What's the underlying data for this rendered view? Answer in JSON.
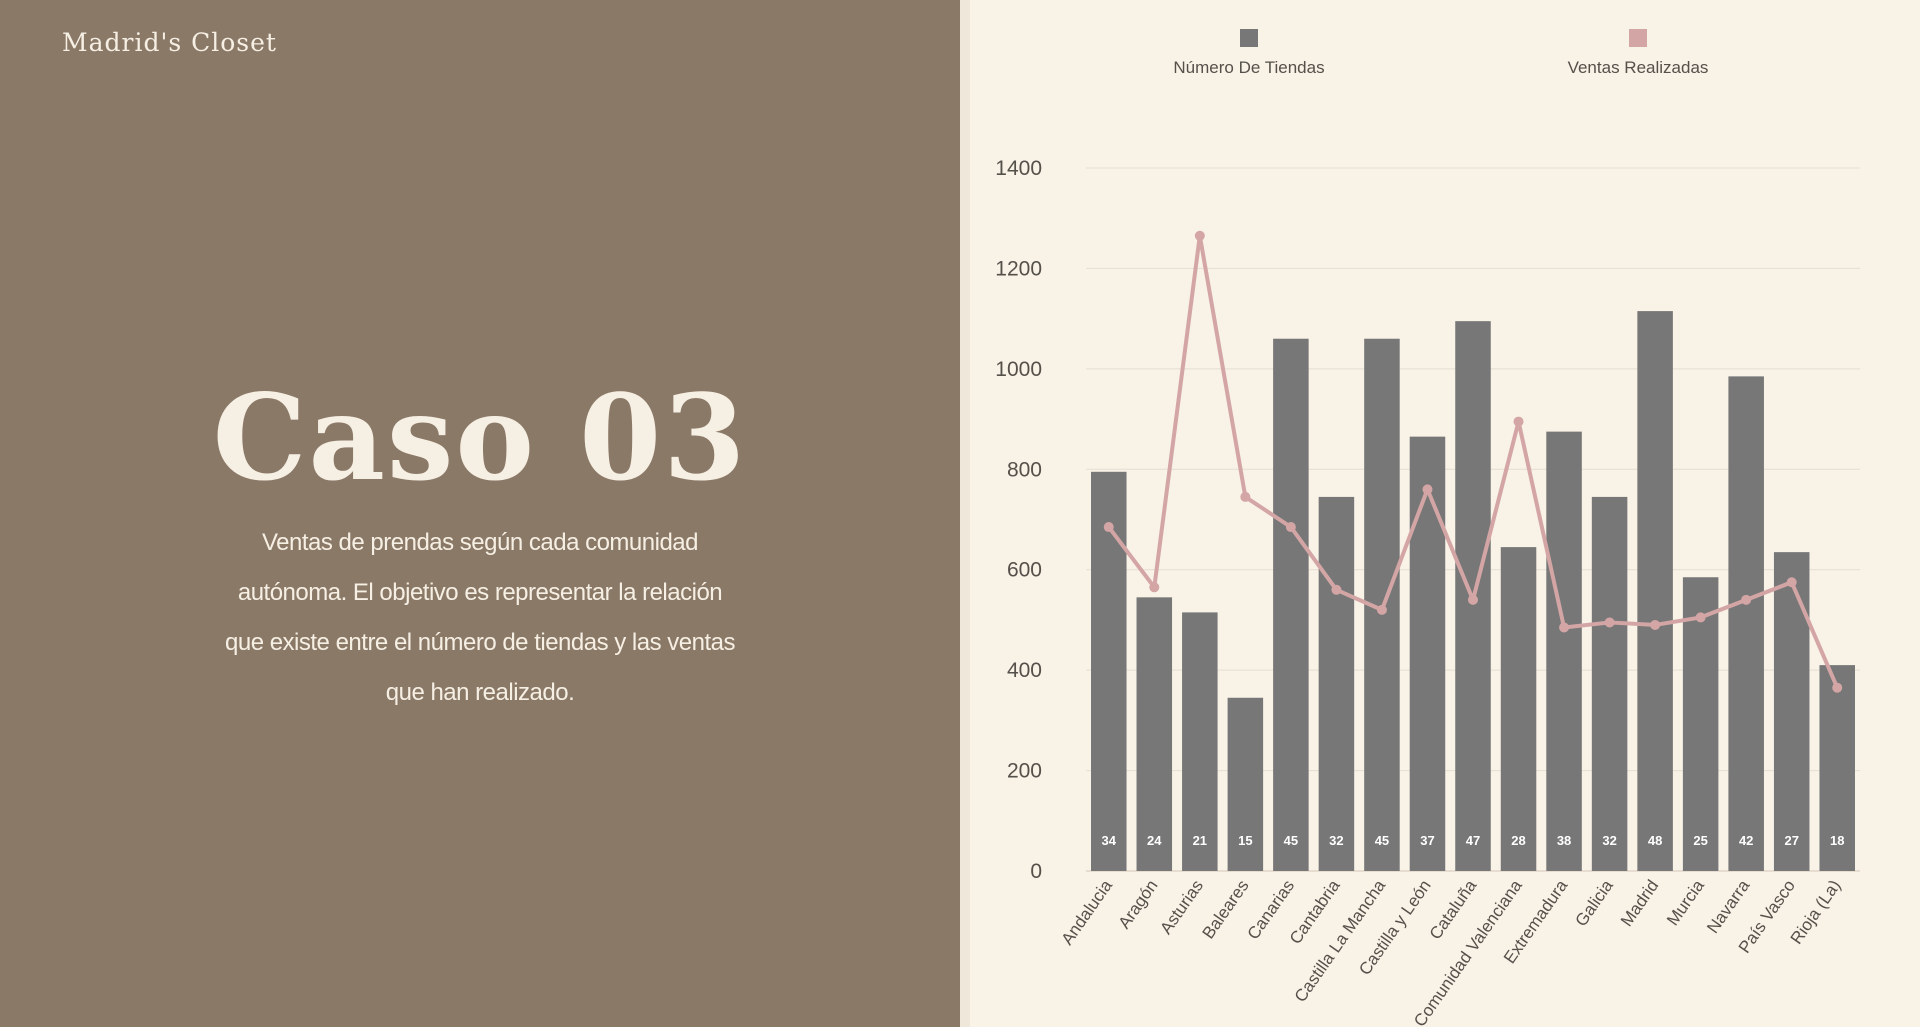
{
  "brand": "Madrid's Closet",
  "slide": {
    "title": "Caso 03",
    "description": "Ventas de prendas según cada comunidad autónoma. El objetivo es representar la relación que existe entre el número de tiendas y las ventas que han realizado."
  },
  "colors": {
    "left_panel": "#8b7968",
    "right_panel": "#f8f2e7",
    "bar": "#777777",
    "line": "#d4a5a5",
    "text_light": "#f6efe3"
  },
  "chart_data": {
    "type": "bar",
    "categories": [
      "Andalucia",
      "Aragón",
      "Asturias",
      "Baleares",
      "Canarias",
      "Cantabria",
      "Castilla La Mancha",
      "Castilla y León",
      "Cataluña",
      "Comunidad Valenciana",
      "Extremadura",
      "Galicia",
      "Madrid",
      "Murcia",
      "Navarra",
      "País Vasco",
      "Rioja (La)"
    ],
    "series": [
      {
        "name": "Número De Tiendas",
        "type": "bar",
        "values": [
          795,
          545,
          515,
          345,
          1060,
          745,
          1060,
          865,
          1095,
          645,
          875,
          745,
          1115,
          585,
          985,
          635,
          410
        ],
        "data_labels": [
          "34",
          "24",
          "21",
          "15",
          "45",
          "32",
          "45",
          "37",
          "47",
          "28",
          "38",
          "32",
          "48",
          "25",
          "42",
          "27",
          "18"
        ]
      },
      {
        "name": "Ventas Realizadas",
        "type": "line",
        "values": [
          685,
          565,
          1265,
          745,
          685,
          560,
          520,
          760,
          540,
          895,
          485,
          495,
          490,
          505,
          540,
          575,
          365
        ]
      }
    ],
    "y_ticks": [
      0,
      200,
      400,
      600,
      800,
      1000,
      1200,
      1400
    ],
    "ylim": [
      0,
      1400
    ],
    "grid": true,
    "legend_position": "top"
  }
}
